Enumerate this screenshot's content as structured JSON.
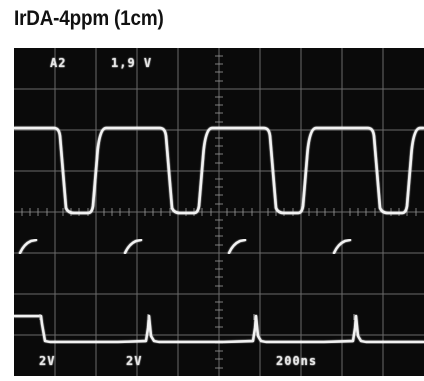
{
  "title": "IrDA-4ppm (1cm)",
  "scope": {
    "channel_label": "A2",
    "volts_per_div_label": "1,9 V",
    "ch1_scale": "2V",
    "ch2_scale": "2V",
    "time_per_div": "200ns"
  },
  "colors": {
    "screen": "#0a0a0a",
    "grid": "#8a8a8a",
    "trace": "#f2f2f2",
    "title_text": "#111111"
  }
}
